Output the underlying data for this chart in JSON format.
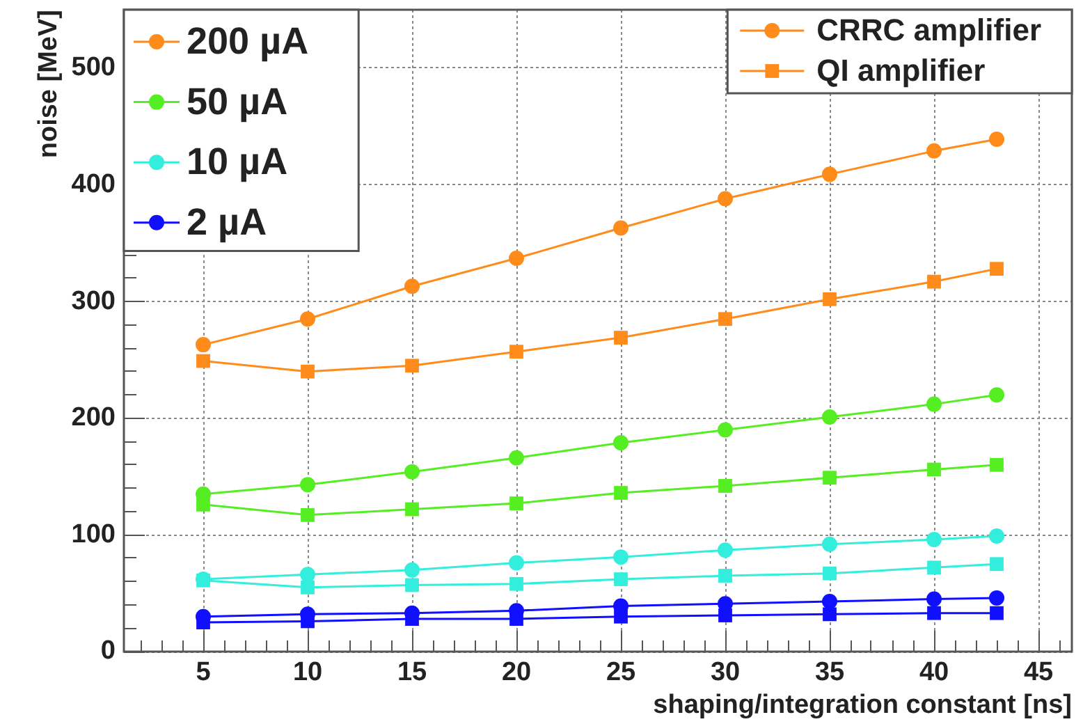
{
  "chart_data": {
    "type": "line",
    "xlabel": "shaping/integration constant [ns]",
    "ylabel": "noise [MeV]",
    "x": [
      5,
      10,
      15,
      20,
      25,
      30,
      35,
      40,
      43
    ],
    "xlim": [
      1.2,
      46.6
    ],
    "xticks": [
      {
        "value": 2,
        "label": null
      },
      {
        "value": 3,
        "label": null
      },
      {
        "value": 4,
        "label": null
      },
      5,
      {
        "value": 6,
        "label": null
      },
      {
        "value": 7,
        "label": null
      },
      {
        "value": 8,
        "label": null
      },
      {
        "value": 9,
        "label": null
      },
      10,
      {
        "value": 11,
        "label": null
      },
      {
        "value": 12,
        "label": null
      },
      {
        "value": 13,
        "label": null
      },
      {
        "value": 14,
        "label": null
      },
      15,
      {
        "value": 16,
        "label": null
      },
      {
        "value": 17,
        "label": null
      },
      {
        "value": 18,
        "label": null
      },
      {
        "value": 19,
        "label": null
      },
      20,
      {
        "value": 21,
        "label": null
      },
      {
        "value": 22,
        "label": null
      },
      {
        "value": 23,
        "label": null
      },
      {
        "value": 24,
        "label": null
      },
      25,
      {
        "value": 26,
        "label": null
      },
      {
        "value": 27,
        "label": null
      },
      {
        "value": 28,
        "label": null
      },
      {
        "value": 29,
        "label": null
      },
      30,
      {
        "value": 31,
        "label": null
      },
      {
        "value": 32,
        "label": null
      },
      {
        "value": 33,
        "label": null
      },
      {
        "value": 34,
        "label": null
      },
      35,
      {
        "value": 36,
        "label": null
      },
      {
        "value": 37,
        "label": null
      },
      {
        "value": 38,
        "label": null
      },
      {
        "value": 39,
        "label": null
      },
      40,
      {
        "value": 41,
        "label": null
      },
      {
        "value": 42,
        "label": null
      },
      {
        "value": 43,
        "label": null
      },
      {
        "value": 44,
        "label": null
      },
      45,
      {
        "value": 46,
        "label": null
      }
    ],
    "ylim": [
      0,
      550
    ],
    "yticks": [
      0,
      {
        "value": 20,
        "label": null
      },
      {
        "value": 40,
        "label": null
      },
      {
        "value": 60,
        "label": null
      },
      {
        "value": 80,
        "label": null
      },
      100,
      {
        "value": 120,
        "label": null
      },
      {
        "value": 140,
        "label": null
      },
      {
        "value": 160,
        "label": null
      },
      {
        "value": 180,
        "label": null
      },
      200,
      {
        "value": 220,
        "label": null
      },
      {
        "value": 240,
        "label": null
      },
      {
        "value": 260,
        "label": null
      },
      {
        "value": 280,
        "label": null
      },
      300,
      {
        "value": 320,
        "label": null
      },
      {
        "value": 340,
        "label": null
      },
      {
        "value": 360,
        "label": null
      },
      {
        "value": 380,
        "label": null
      },
      400,
      {
        "value": 420,
        "label": null
      },
      {
        "value": 440,
        "label": null
      },
      {
        "value": 460,
        "label": null
      },
      {
        "value": 480,
        "label": null
      },
      500,
      {
        "value": 520,
        "label": null
      },
      {
        "value": 540,
        "label": null
      }
    ],
    "grid": true,
    "legend": "top left",
    "series": [
      {
        "name": "200 µA",
        "color": "#ff8c1a",
        "marker": "circle",
        "values": [
          263,
          285,
          313,
          337,
          363,
          388,
          409,
          429,
          439
        ]
      },
      {
        "name": "50 µA",
        "color": "#55ee22",
        "marker": "circle",
        "values": [
          135,
          143,
          154,
          166,
          179,
          190,
          201,
          212,
          220
        ]
      },
      {
        "name": "10 µA",
        "color": "#33eedd",
        "marker": "circle",
        "values": [
          62,
          66,
          70,
          76,
          81,
          87,
          92,
          96,
          99
        ]
      },
      {
        "name": "2 µA",
        "color": "#1010ff",
        "marker": "circle",
        "values": [
          30,
          32,
          33,
          35,
          39,
          41,
          43,
          45,
          46
        ]
      },
      {
        "color": "#ff8c1a",
        "marker": "square",
        "values": [
          249,
          240,
          245,
          257,
          269,
          285,
          302,
          317,
          328
        ]
      },
      {
        "color": "#55ee22",
        "marker": "square",
        "values": [
          126,
          117,
          122,
          127,
          136,
          142,
          149,
          156,
          160
        ]
      },
      {
        "color": "#33eedd",
        "marker": "square",
        "values": [
          61,
          55,
          57,
          58,
          62,
          65,
          67,
          72,
          75
        ]
      },
      {
        "color": "#1010ff",
        "marker": "square",
        "values": [
          25,
          26,
          28,
          28,
          30,
          31,
          32,
          33,
          33
        ]
      },
      {
        "name": "CRRC amplifier",
        "color": "#ff8c1a",
        "marker": "circle",
        "values": [
          null,
          null,
          null,
          null,
          null,
          null,
          null,
          null,
          null
        ]
      },
      {
        "name": "QI amplifier",
        "color": "#ff8c1a",
        "marker": "square",
        "values": [
          null,
          null,
          null,
          null,
          null,
          null,
          null,
          null,
          null
        ]
      }
    ]
  }
}
